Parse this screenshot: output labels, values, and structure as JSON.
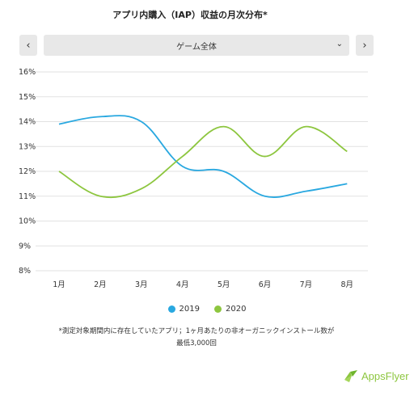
{
  "title": "アプリ内購入（IAP）収益の月次分布*",
  "selector": {
    "prev_icon": "‹",
    "next_icon": "›",
    "selected": "ゲーム全体",
    "chevron_icon": "⌄"
  },
  "chart_data": {
    "type": "line",
    "categories": [
      "1月",
      "2月",
      "3月",
      "4月",
      "5月",
      "6月",
      "7月",
      "8月"
    ],
    "y_ticks": [
      "16%",
      "15%",
      "14%",
      "13%",
      "12%",
      "11%",
      "10%",
      "9%",
      "8%"
    ],
    "ylim": [
      8,
      16
    ],
    "grid": true,
    "legend_position": "bottom",
    "series": [
      {
        "name": "2019",
        "color": "#29a8e0",
        "values": [
          13.9,
          14.2,
          14.0,
          12.2,
          12.0,
          11.0,
          11.2,
          11.5
        ]
      },
      {
        "name": "2020",
        "color": "#8dc63f",
        "values": [
          12.0,
          11.0,
          11.3,
          12.6,
          13.8,
          12.6,
          13.8,
          12.8
        ]
      }
    ]
  },
  "footnote": {
    "line1": "*測定対象期間内に存在していたアプリ；1ヶ月あたりの非オーガニックインストール数が",
    "line2": "最低3,000回"
  },
  "logo": {
    "text": "AppsFlyer"
  }
}
